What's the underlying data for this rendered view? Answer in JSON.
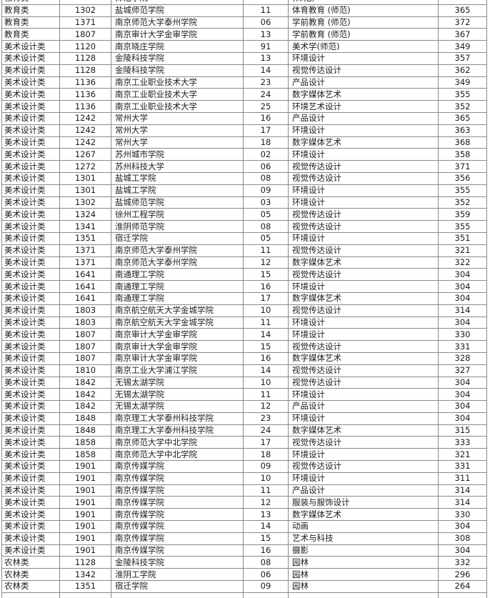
{
  "colors": {
    "background": "#ffffff",
    "grid_border": "#8a8a8a",
    "text": "#1c1c1c"
  },
  "chart_data": {
    "type": "table",
    "column_keys": [
      "category",
      "school_code",
      "school_name",
      "major_code",
      "major_name",
      "score"
    ],
    "column_alignment": [
      "left",
      "center",
      "left",
      "center",
      "left",
      "center"
    ],
    "grid": true,
    "header_visible": false,
    "rows": [
      [
        "教育类",
        "1302",
        "盐城师范学院",
        "11",
        "体育教育 (师范)",
        "365"
      ],
      [
        "教育类",
        "1371",
        "南京师范大学泰州学院",
        "06",
        "学前教育 (师范)",
        "372"
      ],
      [
        "教育类",
        "1807",
        "南京审计大学金审学院",
        "13",
        "学前教育 (师范)",
        "367"
      ],
      [
        "美术设计类",
        "1120",
        "南京晓庄学院",
        "91",
        "美术学(师范)",
        "349"
      ],
      [
        "美术设计类",
        "1128",
        "金陵科技学院",
        "13",
        "环境设计",
        "357"
      ],
      [
        "美术设计类",
        "1128",
        "金陵科技学院",
        "14",
        "视觉传达设计",
        "362"
      ],
      [
        "美术设计类",
        "1136",
        "南京工业职业技术大学",
        "23",
        "产品设计",
        "349"
      ],
      [
        "美术设计类",
        "1136",
        "南京工业职业技术大学",
        "24",
        "数字媒体艺术",
        "355"
      ],
      [
        "美术设计类",
        "1136",
        "南京工业职业技术大学",
        "25",
        "环境艺术设计",
        "352"
      ],
      [
        "美术设计类",
        "1242",
        "常州大学",
        "16",
        "产品设计",
        "365"
      ],
      [
        "美术设计类",
        "1242",
        "常州大学",
        "17",
        "环境设计",
        "363"
      ],
      [
        "美术设计类",
        "1242",
        "常州大学",
        "18",
        "数字媒体艺术",
        "368"
      ],
      [
        "美术设计类",
        "1267",
        "苏州城市学院",
        "02",
        "环境设计",
        "358"
      ],
      [
        "美术设计类",
        "1272",
        "苏州科技大学",
        "06",
        "视觉传达设计",
        "371"
      ],
      [
        "美术设计类",
        "1301",
        "盐城工学院",
        "08",
        "视觉传达设计",
        "356"
      ],
      [
        "美术设计类",
        "1301",
        "盐城工学院",
        "09",
        "环境设计",
        "355"
      ],
      [
        "美术设计类",
        "1302",
        "盐城师范学院",
        "03",
        "环境设计",
        "352"
      ],
      [
        "美术设计类",
        "1324",
        "徐州工程学院",
        "05",
        "视觉传达设计",
        "359"
      ],
      [
        "美术设计类",
        "1341",
        "淮阴师范学院",
        "08",
        "视觉传达设计",
        "355"
      ],
      [
        "美术设计类",
        "1351",
        "宿迁学院",
        "05",
        "环境设计",
        "351"
      ],
      [
        "美术设计类",
        "1371",
        "南京师范大学泰州学院",
        "11",
        "视觉传达设计",
        "321"
      ],
      [
        "美术设计类",
        "1371",
        "南京师范大学泰州学院",
        "12",
        "数字媒体艺术",
        "322"
      ],
      [
        "美术设计类",
        "1641",
        "南通理工学院",
        "15",
        "视觉传达设计",
        "304"
      ],
      [
        "美术设计类",
        "1641",
        "南通理工学院",
        "16",
        "环境设计",
        "304"
      ],
      [
        "美术设计类",
        "1641",
        "南通理工学院",
        "17",
        "数字媒体艺术",
        "304"
      ],
      [
        "美术设计类",
        "1803",
        "南京航空航天大学金城学院",
        "10",
        "视觉传达设计",
        "314"
      ],
      [
        "美术设计类",
        "1803",
        "南京航空航天大学金城学院",
        "11",
        "环境设计",
        "304"
      ],
      [
        "美术设计类",
        "1807",
        "南京审计大学金审学院",
        "14",
        "环境设计",
        "330"
      ],
      [
        "美术设计类",
        "1807",
        "南京审计大学金审学院",
        "15",
        "视觉传达设计",
        "331"
      ],
      [
        "美术设计类",
        "1807",
        "南京审计大学金审学院",
        "16",
        "数字媒体艺术",
        "328"
      ],
      [
        "美术设计类",
        "1810",
        "南京工业大学浦江学院",
        "14",
        "视觉传达设计",
        "327"
      ],
      [
        "美术设计类",
        "1842",
        "无锡太湖学院",
        "10",
        "视觉传达设计",
        "304"
      ],
      [
        "美术设计类",
        "1842",
        "无锡太湖学院",
        "11",
        "环境设计",
        "304"
      ],
      [
        "美术设计类",
        "1842",
        "无锡太湖学院",
        "12",
        "产品设计",
        "304"
      ],
      [
        "美术设计类",
        "1848",
        "南京理工大学泰州科技学院",
        "23",
        "环境设计",
        "304"
      ],
      [
        "美术设计类",
        "1848",
        "南京理工大学泰州科技学院",
        "24",
        "数字媒体艺术",
        "315"
      ],
      [
        "美术设计类",
        "1858",
        "南京师范大学中北学院",
        "17",
        "视觉传达设计",
        "333"
      ],
      [
        "美术设计类",
        "1858",
        "南京师范大学中北学院",
        "18",
        "环境设计",
        "321"
      ],
      [
        "美术设计类",
        "1901",
        "南京传媒学院",
        "09",
        "视觉传达设计",
        "331"
      ],
      [
        "美术设计类",
        "1901",
        "南京传媒学院",
        "10",
        "环境设计",
        "311"
      ],
      [
        "美术设计类",
        "1901",
        "南京传媒学院",
        "11",
        "产品设计",
        "314"
      ],
      [
        "美术设计类",
        "1901",
        "南京传媒学院",
        "12",
        "服装与服饰设计",
        "314"
      ],
      [
        "美术设计类",
        "1901",
        "南京传媒学院",
        "13",
        "数字媒体艺术",
        "330"
      ],
      [
        "美术设计类",
        "1901",
        "南京传媒学院",
        "14",
        "动画",
        "304"
      ],
      [
        "美术设计类",
        "1901",
        "南京传媒学院",
        "15",
        "艺术与科技",
        "308"
      ],
      [
        "美术设计类",
        "1901",
        "南京传媒学院",
        "16",
        "摄影",
        "304"
      ],
      [
        "农林类",
        "1128",
        "金陵科技学院",
        "08",
        "园林",
        "332"
      ],
      [
        "农林类",
        "1342",
        "淮阴工学院",
        "06",
        "园林",
        "296"
      ],
      [
        "农林类",
        "1351",
        "宿迁学院",
        "09",
        "园林",
        "264"
      ]
    ]
  },
  "clipped": {
    "top_rows": [
      [
        "教育类",
        "",
        "师范学院",
        "",
        "(师范)",
        ""
      ]
    ],
    "bottom_rows": [
      [
        "",
        "",
        "",
        "",
        "",
        ""
      ]
    ]
  }
}
